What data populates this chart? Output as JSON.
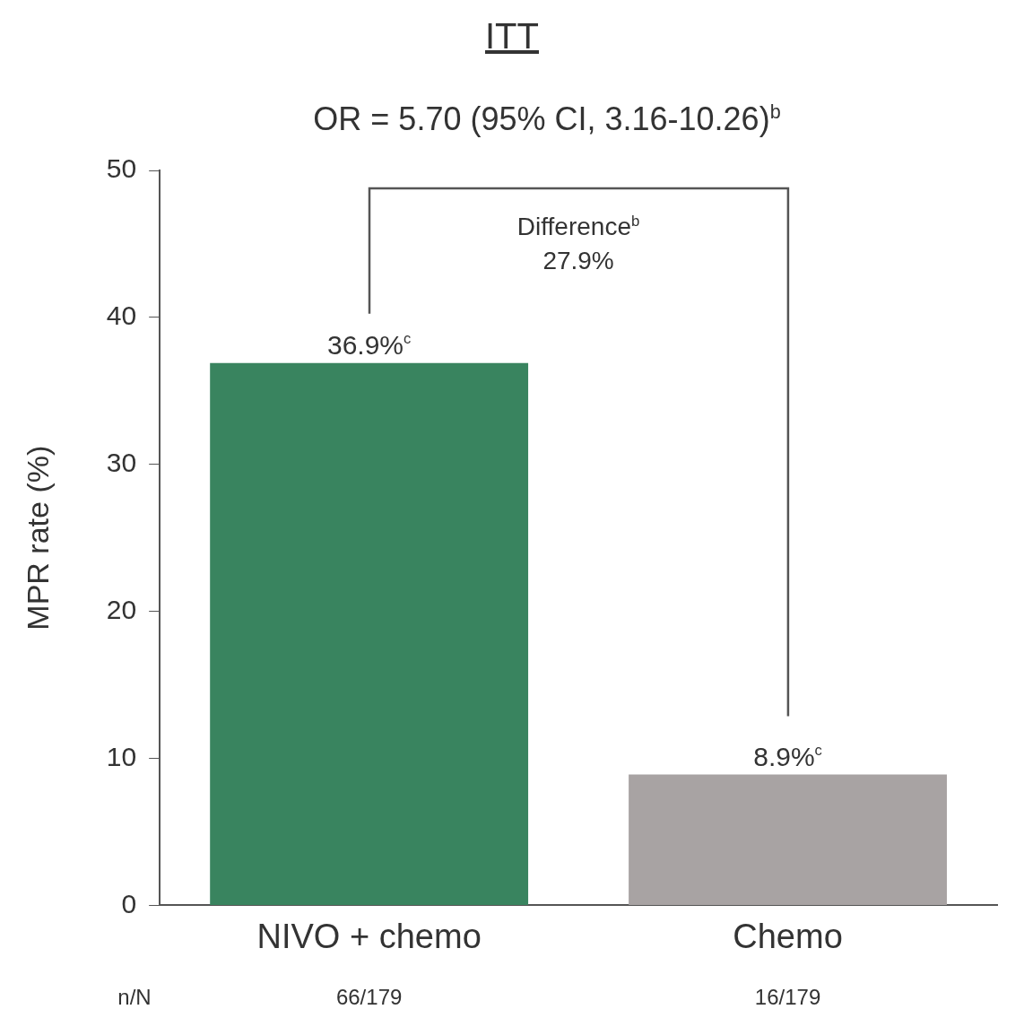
{
  "chart_data": {
    "type": "bar",
    "title": "ITT",
    "subtitle": "OR = 5.70 (95% CI, 3.16-10.26)$^{b}$",
    "ylabel": "MPR rate (%)",
    "categories": [
      "NIVO + chemo",
      "Chemo"
    ],
    "values": [
      36.9,
      8.9
    ],
    "colors": [
      "#39845f",
      "#a8a3a3"
    ],
    "value_labels": [
      "36.9%$^{c}$",
      "8.9%$^{c}$"
    ],
    "ylim": [
      0,
      50
    ],
    "yticks": [
      0,
      10,
      20,
      30,
      40,
      50
    ],
    "grid": false,
    "legend": false,
    "annotations": [
      "Difference$^{b}$\n27.9%",
      "n/N",
      "66/179",
      "16/179"
    ]
  }
}
